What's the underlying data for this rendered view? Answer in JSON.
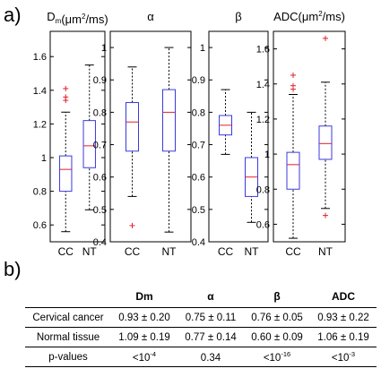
{
  "panel_labels": {
    "a": "a)",
    "b": "b)"
  },
  "chart_data": [
    {
      "type": "box",
      "title": "D",
      "title_subscript": "m",
      "title_unit": "(μm",
      "title_unit_sup": "2",
      "title_unit_end": "/ms)",
      "categories": [
        "CC",
        "NT"
      ],
      "ylim": [
        0.5,
        1.75
      ],
      "yticks": [
        0.6,
        0.8,
        1,
        1.2,
        1.4,
        1.6
      ],
      "ytick_labels": [
        "0.6",
        "0.8",
        "1",
        "1.2",
        "1.4",
        "1.6"
      ],
      "boxes": [
        {
          "whisker_low": 0.56,
          "q1": 0.8,
          "median": 0.93,
          "q3": 1.01,
          "whisker_high": 1.27,
          "outliers": [
            1.34,
            1.36,
            1.41
          ]
        },
        {
          "whisker_low": 0.69,
          "q1": 0.94,
          "median": 1.07,
          "q3": 1.22,
          "whisker_high": 1.55,
          "outliers": []
        }
      ]
    },
    {
      "type": "box",
      "title": "α",
      "categories": [
        "CC",
        "NT"
      ],
      "ylim": [
        0.4,
        1.05
      ],
      "yticks": [
        0.4,
        0.5,
        0.6,
        0.7,
        0.8,
        0.9,
        1
      ],
      "ytick_labels": [
        "0.4",
        "0.5",
        "0.6",
        "0.7",
        "0.8",
        "0.9",
        "1"
      ],
      "boxes": [
        {
          "whisker_low": 0.54,
          "q1": 0.68,
          "median": 0.77,
          "q3": 0.83,
          "whisker_high": 0.94,
          "outliers": [
            0.45
          ]
        },
        {
          "whisker_low": 0.43,
          "q1": 0.68,
          "median": 0.8,
          "q3": 0.87,
          "whisker_high": 1.0,
          "outliers": []
        }
      ]
    },
    {
      "type": "box",
      "title": "β",
      "categories": [
        "CC",
        "NT"
      ],
      "ylim": [
        0.4,
        1.05
      ],
      "yticks": [
        0.4,
        0.5,
        0.6,
        0.7,
        0.8,
        0.9,
        1
      ],
      "ytick_labels": [
        "0.4",
        "0.5",
        "0.6",
        "0.7",
        "0.8",
        "0.9",
        "1"
      ],
      "boxes": [
        {
          "whisker_low": 0.67,
          "q1": 0.73,
          "median": 0.76,
          "q3": 0.79,
          "whisker_high": 0.87,
          "outliers": []
        },
        {
          "whisker_low": 0.46,
          "q1": 0.54,
          "median": 0.6,
          "q3": 0.66,
          "whisker_high": 0.8,
          "outliers": []
        }
      ]
    },
    {
      "type": "box",
      "title": "ADC",
      "title_unit": "(μm",
      "title_unit_sup": "2",
      "title_unit_end": "/ms)",
      "categories": [
        "CC",
        "NT"
      ],
      "ylim": [
        0.5,
        1.7
      ],
      "yticks": [
        0.6,
        0.8,
        1,
        1.2,
        1.4,
        1.6
      ],
      "ytick_labels": [
        "0.6",
        "0.8",
        "1",
        "1.2",
        "1.4",
        "1.6"
      ],
      "boxes": [
        {
          "whisker_low": 0.52,
          "q1": 0.8,
          "median": 0.94,
          "q3": 1.01,
          "whisker_high": 1.34,
          "outliers": [
            1.37,
            1.39,
            1.45
          ]
        },
        {
          "whisker_low": 0.69,
          "q1": 0.97,
          "median": 1.06,
          "q3": 1.16,
          "whisker_high": 1.41,
          "outliers": [
            0.65,
            1.66
          ]
        }
      ]
    }
  ],
  "table": {
    "headers": [
      "",
      "Dm",
      "α",
      "β",
      "ADC"
    ],
    "rows": [
      {
        "label": "Cervical cancer",
        "cells": [
          "0.93 ± 0.20",
          "0.75 ± 0.11",
          "0.76 ± 0.05",
          "0.93 ± 0.22"
        ]
      },
      {
        "label": "Normal tissue",
        "cells": [
          "1.09 ± 0.19",
          "0.77 ± 0.14",
          "0.60 ± 0.09",
          "1.06 ± 0.19"
        ]
      },
      {
        "label": "p-values",
        "cells": [
          {
            "base": "<10",
            "sup": "-4"
          },
          {
            "base": "0.34",
            "sup": ""
          },
          {
            "base": "<10",
            "sup": "-16"
          },
          {
            "base": "<10",
            "sup": "-3"
          }
        ]
      }
    ]
  },
  "colors": {
    "box": "#3a3adf",
    "median": "#e0202a",
    "outlier": "#e0202a",
    "whisker": "#000000"
  }
}
